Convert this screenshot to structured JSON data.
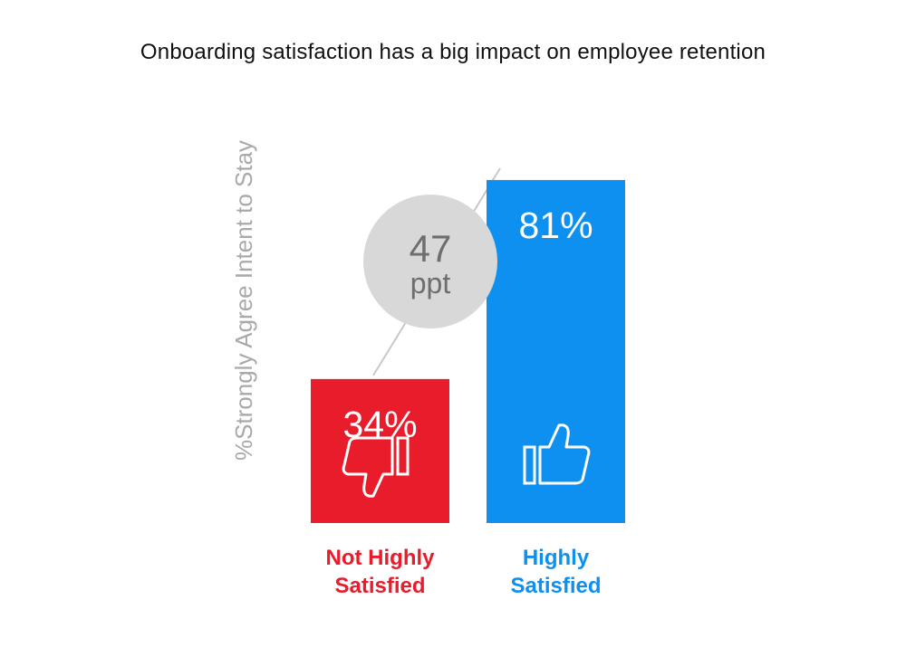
{
  "chart_data": {
    "type": "bar",
    "title": "Onboarding satisfaction has a big impact on employee retention",
    "ylabel": "%Strongly Agree Intent to Stay",
    "ylim": [
      0,
      100
    ],
    "categories": [
      "Not Highly Satisfied",
      "Highly Satisfied"
    ],
    "category_lines": [
      [
        "Not Highly",
        "Satisfied"
      ],
      [
        "Highly",
        "Satisfied"
      ]
    ],
    "values": [
      34,
      81
    ],
    "value_labels": [
      "34%",
      "81%"
    ],
    "colors": [
      "#e81c2b",
      "#0e90f0"
    ],
    "icons": [
      "thumbs-down-icon",
      "thumbs-up-icon"
    ],
    "difference": {
      "value": "47",
      "unit": "ppt"
    }
  }
}
